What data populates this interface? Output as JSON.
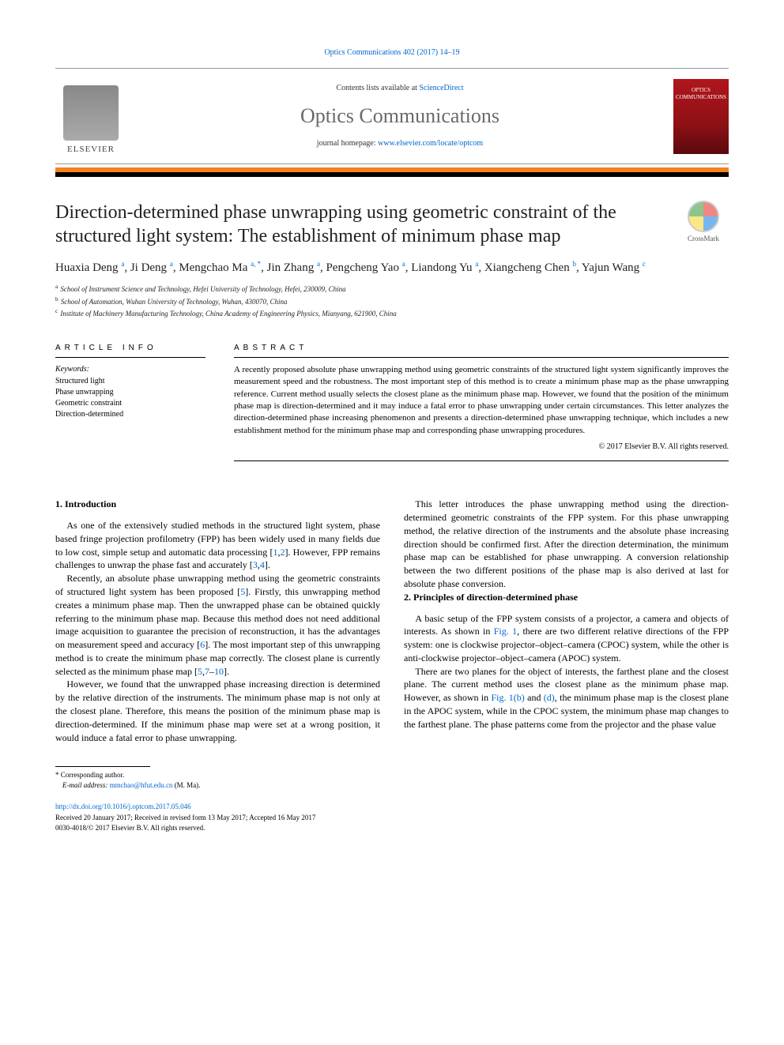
{
  "header": {
    "citation": "Optics Communications 402 (2017) 14–19",
    "contents_prefix": "Contents lists available at ",
    "contents_link": "ScienceDirect",
    "journal_title": "Optics Communications",
    "homepage_prefix": "journal homepage: ",
    "homepage_link": "www.elsevier.com/locate/optcom",
    "publisher_word": "ELSEVIER",
    "cover_top": "OPTICS",
    "cover_bottom": "COMMUNICATIONS"
  },
  "crossmark_label": "CrossMark",
  "article": {
    "title": "Direction-determined phase unwrapping using geometric constraint of the structured light system: The establishment of minimum phase map",
    "authors_html": "Huaxia Deng <sup>a</sup>, Ji Deng <sup>a</sup>, Mengchao Ma <sup>a, *</sup>, Jin Zhang <sup>a</sup>, Pengcheng Yao <sup>a</sup>, Liandong Yu <sup>a</sup>, Xiangcheng Chen <sup>b</sup>, Yajun Wang <sup>c</sup>",
    "affiliations": [
      {
        "mark": "a",
        "text": "School of Instrument Science and Technology, Hefei University of Technology, Hefei, 230009, China"
      },
      {
        "mark": "b",
        "text": "School of Automation, Wuhan University of Technology, Wuhan, 430070, China"
      },
      {
        "mark": "c",
        "text": "Institute of Machinery Manufacturing Technology, China Academy of Engineering Physics, Mianyang, 621900, China"
      }
    ]
  },
  "info": {
    "heading": "article info",
    "keywords_label": "Keywords:",
    "keywords": [
      "Structured light",
      "Phase unwrapping",
      "Geometric constraint",
      "Direction-determined"
    ]
  },
  "abstract": {
    "heading": "abstract",
    "text": "A recently proposed absolute phase unwrapping method using geometric constraints of the structured light system significantly improves the measurement speed and the robustness. The most important step of this method is to create a minimum phase map as the phase unwrapping reference. Current method usually selects the closest plane as the minimum phase map. However, we found that the position of the minimum phase map is direction-determined and it may induce a fatal error to phase unwrapping under certain circumstances. This letter analyzes the direction-determined phase increasing phenomenon and presents a direction-determined phase unwrapping technique, which includes a new establishment method for the minimum phase map and corresponding phase unwrapping procedures.",
    "copyright": "© 2017 Elsevier B.V. All rights reserved."
  },
  "sections": {
    "intro_heading": "1. Introduction",
    "intro_p1": "As one of the extensively studied methods in the structured light system, phase based fringe projection profilometry (FPP) has been widely used in many fields due to low cost, simple setup and automatic data processing [",
    "intro_p1_ref1": "1",
    "intro_p1_mid1": ",",
    "intro_p1_ref2": "2",
    "intro_p1_mid2": "]. However, FPP remains challenges to unwrap the phase fast and accurately [",
    "intro_p1_ref3": "3",
    "intro_p1_mid3": ",",
    "intro_p1_ref4": "4",
    "intro_p1_end": "].",
    "intro_p2a": "Recently, an absolute phase unwrapping method using the geometric constraints of structured light system has been proposed [",
    "intro_p2_ref5": "5",
    "intro_p2b": "]. Firstly, this unwrapping method creates a minimum phase map. Then the unwrapped phase can be obtained quickly referring to the minimum phase map. Because this method does not need additional image acquisition to guarantee the precision of reconstruction, it has the advantages on measurement speed and accuracy [",
    "intro_p2_ref6": "6",
    "intro_p2c": "]. The most important step of this unwrapping method is to create the minimum phase map correctly. The closest plane is currently selected as the minimum phase map [",
    "intro_p2_ref5b": "5",
    "intro_p2_mid": ",",
    "intro_p2_ref7": "7",
    "intro_p2_dash": "–",
    "intro_p2_ref10": "10",
    "intro_p2d": "].",
    "intro_p3": "However, we found that the unwrapped phase increasing direction is determined by the relative direction of the instruments. The minimum phase map is not only at the closest plane. Therefore, this means the position of the minimum phase map is direction-determined. If the minimum phase map were set at a wrong position, it would induce a fatal error to phase unwrapping.",
    "intro_p4": "This letter introduces the phase unwrapping method using the direction-determined geometric constraints of the FPP system. For this phase unwrapping method, the relative direction of the instruments and the absolute phase increasing direction should be confirmed first. After the direction determination, the minimum phase map can be established for phase unwrapping. A conversion relationship between the two different positions of the phase map is also derived at last for absolute phase conversion.",
    "principles_heading": "2. Principles of direction-determined phase",
    "prin_p1a": "A basic setup of the FPP system consists of a projector, a camera and objects of interests. As shown in ",
    "prin_fig1": "Fig. 1",
    "prin_p1b": ", there are two different relative directions of the FPP system: one is clockwise projector–object–camera (CPOC) system, while the other is anti-clockwise projector–object–camera (APOC) system.",
    "prin_p2a": "There are two planes for the object of interests, the farthest plane and the closest plane. The current method uses the closest plane as the minimum phase map. However, as shown in ",
    "prin_fig1b": "Fig. 1(b)",
    "prin_p2_mid": " and ",
    "prin_fig1d": "(d)",
    "prin_p2b": ", the minimum phase map is the closest plane in the APOC system, while in the CPOC system, the minimum phase map changes to the farthest plane. The phase patterns come from the projector and the phase value"
  },
  "footer": {
    "corresponding_label": "* Corresponding author.",
    "email_label": "E-mail address: ",
    "email": "mmchao@hfut.edu.cn",
    "email_suffix": " (M. Ma).",
    "doi": "http://dx.doi.org/10.1016/j.optcom.2017.05.046",
    "received": "Received 20 January 2017; Received in revised form 13 May 2017; Accepted 16 May 2017",
    "issn": "0030-4018/© 2017 Elsevier B.V. All rights reserved."
  }
}
